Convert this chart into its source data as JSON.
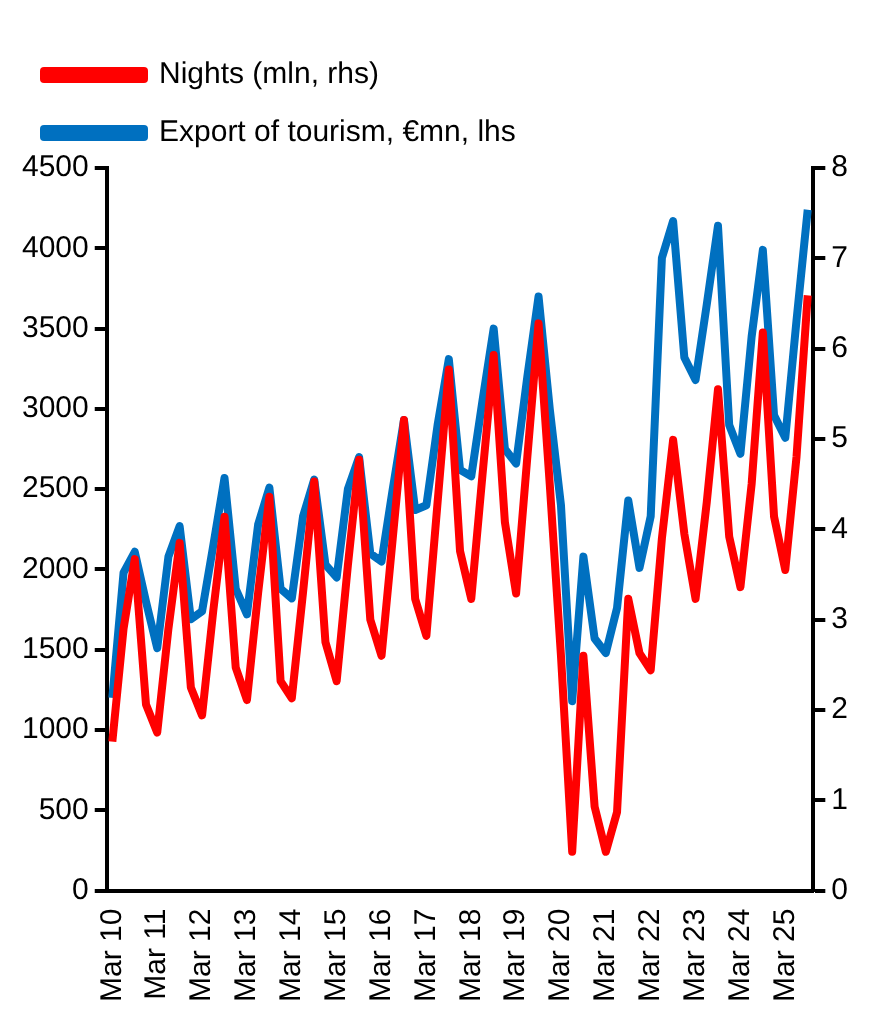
{
  "chart_data": {
    "type": "line",
    "categories": [
      "Mar 10",
      null,
      null,
      null,
      "Mar 11",
      null,
      null,
      null,
      "Mar 12",
      null,
      null,
      null,
      "Mar 13",
      null,
      null,
      null,
      "Mar 14",
      null,
      null,
      null,
      "Mar 15",
      null,
      null,
      null,
      "Mar 16",
      null,
      null,
      null,
      "Mar 17",
      null,
      null,
      null,
      "Mar 18",
      null,
      null,
      null,
      "Mar 19",
      null,
      null,
      null,
      "Mar 20",
      null,
      null,
      null,
      "Mar 21",
      null,
      null,
      null,
      "Mar 22",
      null,
      null,
      null,
      "Mar 23",
      null,
      null,
      null,
      "Mar 24",
      null,
      null,
      null,
      "Mar 25",
      null,
      null
    ],
    "series": [
      {
        "name": "Export of tourism, €mn, lhs",
        "color": "#0070c0",
        "values": [
          1200,
          1980,
          2110,
          1800,
          1510,
          2080,
          2270,
          1690,
          1740,
          2150,
          2570,
          1880,
          1720,
          2280,
          2510,
          1880,
          1820,
          2330,
          2560,
          2030,
          1950,
          2500,
          2700,
          2100,
          2050,
          2500,
          2930,
          2370,
          2400,
          2900,
          3310,
          2620,
          2580,
          3050,
          3500,
          2750,
          2660,
          3200,
          3700,
          3000,
          2400,
          1180,
          2080,
          1570,
          1480,
          1760,
          2430,
          2010,
          2330,
          3940,
          4170,
          3320,
          3180,
          3650,
          4140,
          2900,
          2720,
          3450,
          3990,
          2960,
          2820,
          3550,
          4240
        ]
      },
      {
        "name": "Nights (mln, rhs)",
        "color": "#ff0000",
        "axis": "y2",
        "values": [
          1.65,
          2.9,
          3.67,
          2.06,
          1.75,
          2.9,
          3.85,
          2.25,
          1.94,
          3.1,
          4.14,
          2.47,
          2.11,
          3.3,
          4.36,
          2.32,
          2.13,
          3.3,
          4.53,
          2.75,
          2.32,
          3.6,
          4.77,
          3.0,
          2.6,
          3.9,
          5.21,
          3.23,
          2.82,
          4.3,
          5.77,
          3.76,
          3.23,
          4.6,
          5.93,
          4.08,
          3.29,
          4.8,
          6.28,
          4.5,
          2.6,
          0.43,
          2.6,
          0.93,
          0.43,
          0.87,
          3.23,
          2.63,
          2.44,
          3.9,
          4.99,
          3.95,
          3.23,
          4.3,
          5.55,
          3.92,
          3.36,
          4.5,
          6.18,
          4.14,
          3.55,
          4.8,
          6.59
        ]
      }
    ],
    "ylim": [
      0,
      4500
    ],
    "yticks": [
      0,
      500,
      1000,
      1500,
      2000,
      2500,
      3000,
      3500,
      4000,
      4500
    ],
    "y2lim": [
      0,
      8
    ],
    "y2ticks": [
      0,
      1,
      2,
      3,
      4,
      5,
      6,
      7,
      8
    ],
    "grid": false,
    "legend": "top left",
    "marker": "none",
    "line_style": "solid"
  }
}
